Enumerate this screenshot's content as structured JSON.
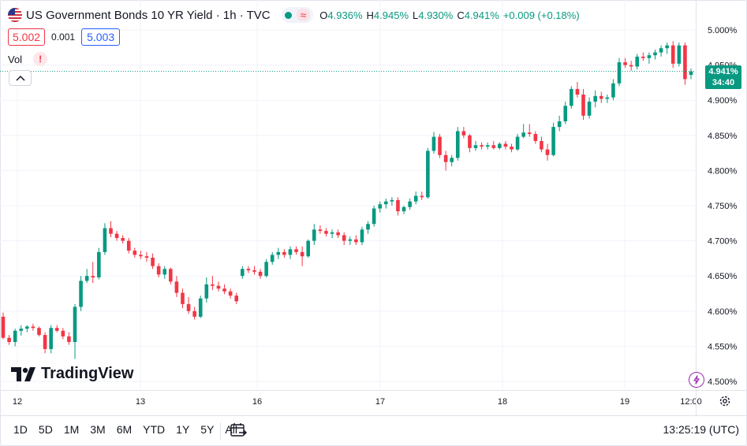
{
  "legend": {
    "title": "US Government Bonds 10 YR Yield · 1h · TVC",
    "approx_symbol": "≈",
    "open_label": "O",
    "open": "4.936%",
    "high_label": "H",
    "high": "4.945%",
    "low_label": "L",
    "low": "4.930%",
    "close_label": "C",
    "close": "4.941%",
    "change": "+0.009 (+0.18%)"
  },
  "quote": {
    "bid": "5.002",
    "spread": "0.001",
    "ask": "5.003"
  },
  "volume": {
    "label": "Vol",
    "warning": "!"
  },
  "logo": {
    "text": "TradingView"
  },
  "last_price": {
    "value": "4.941%",
    "countdown": "34:40"
  },
  "bottom_bar": {
    "ranges": [
      "1D",
      "5D",
      "1M",
      "3M",
      "6M",
      "YTD",
      "1Y",
      "5Y",
      "All"
    ],
    "time": "13:25:19 (UTC)"
  },
  "colors": {
    "up": "#089981",
    "down": "#f23645",
    "grid": "#f0f3fa",
    "text": "#131722"
  },
  "icons": {
    "calendar": "calendar-range-icon",
    "settings": "gear-icon",
    "collapse": "chevron-up-icon"
  },
  "chart_data": {
    "type": "candlestick",
    "y_ticks": [
      "5.000%",
      "4.950%",
      "4.900%",
      "4.850%",
      "4.800%",
      "4.750%",
      "4.700%",
      "4.650%",
      "4.600%",
      "4.550%",
      "4.500%"
    ],
    "x_ticks": [
      "12",
      "13",
      "16",
      "17",
      "18",
      "19",
      "12:00"
    ],
    "ylim": [
      4.49,
      5.01
    ],
    "last_value": 4.941,
    "candles": [
      [
        4.592,
        4.598,
        4.56,
        4.562
      ],
      [
        4.562,
        4.566,
        4.552,
        4.556
      ],
      [
        4.556,
        4.575,
        4.55,
        4.572
      ],
      [
        4.572,
        4.58,
        4.565,
        4.575
      ],
      [
        4.575,
        4.58,
        4.57,
        4.578
      ],
      [
        4.578,
        4.582,
        4.572,
        4.576
      ],
      [
        4.576,
        4.578,
        4.564,
        4.566
      ],
      [
        4.566,
        4.57,
        4.54,
        4.546
      ],
      [
        4.546,
        4.58,
        4.54,
        4.576
      ],
      [
        4.576,
        4.58,
        4.57,
        4.572
      ],
      [
        4.572,
        4.576,
        4.56,
        4.564
      ],
      [
        4.564,
        4.57,
        4.552,
        4.556
      ],
      [
        4.556,
        4.61,
        4.532,
        4.606
      ],
      [
        4.606,
        4.65,
        4.6,
        4.643
      ],
      [
        4.643,
        4.66,
        4.64,
        4.65
      ],
      [
        4.65,
        4.67,
        4.64,
        4.648
      ],
      [
        4.648,
        4.69,
        4.645,
        4.684
      ],
      [
        4.684,
        4.725,
        4.68,
        4.718
      ],
      [
        4.718,
        4.728,
        4.705,
        4.71
      ],
      [
        4.71,
        4.714,
        4.7,
        4.704
      ],
      [
        4.704,
        4.708,
        4.696,
        4.7
      ],
      [
        4.7,
        4.704,
        4.682,
        4.686
      ],
      [
        4.686,
        4.69,
        4.676,
        4.68
      ],
      [
        4.68,
        4.686,
        4.674,
        4.678
      ],
      [
        4.678,
        4.684,
        4.67,
        4.676
      ],
      [
        4.676,
        4.682,
        4.66,
        4.664
      ],
      [
        4.664,
        4.668,
        4.648,
        4.652
      ],
      [
        4.652,
        4.664,
        4.646,
        4.66
      ],
      [
        4.66,
        4.662,
        4.638,
        4.642
      ],
      [
        4.642,
        4.65,
        4.62,
        4.626
      ],
      [
        4.626,
        4.632,
        4.604,
        4.61
      ],
      [
        4.61,
        4.62,
        4.596,
        4.6
      ],
      [
        4.6,
        4.606,
        4.588,
        4.592
      ],
      [
        4.592,
        4.622,
        4.59,
        4.618
      ],
      [
        4.618,
        4.648,
        4.612,
        4.638
      ],
      [
        4.638,
        4.65,
        4.63,
        4.636
      ],
      [
        4.636,
        4.642,
        4.628,
        4.632
      ],
      [
        4.632,
        4.638,
        4.624,
        4.628
      ],
      [
        4.628,
        4.632,
        4.618,
        4.622
      ],
      [
        4.622,
        4.626,
        4.61,
        4.614
      ],
      [
        4.65,
        4.664,
        4.646,
        4.66
      ],
      [
        4.66,
        4.664,
        4.654,
        4.658
      ],
      [
        4.658,
        4.664,
        4.652,
        4.656
      ],
      [
        4.656,
        4.66,
        4.646,
        4.65
      ],
      [
        4.65,
        4.674,
        4.648,
        4.67
      ],
      [
        4.67,
        4.684,
        4.666,
        4.68
      ],
      [
        4.68,
        4.69,
        4.674,
        4.684
      ],
      [
        4.684,
        4.688,
        4.676,
        4.68
      ],
      [
        4.68,
        4.692,
        4.674,
        4.688
      ],
      [
        4.688,
        4.692,
        4.68,
        4.684
      ],
      [
        4.684,
        4.692,
        4.664,
        4.678
      ],
      [
        4.678,
        4.702,
        4.676,
        4.7
      ],
      [
        4.7,
        4.724,
        4.694,
        4.716
      ],
      [
        4.716,
        4.722,
        4.71,
        4.714
      ],
      [
        4.714,
        4.718,
        4.706,
        4.71
      ],
      [
        4.71,
        4.716,
        4.704,
        4.712
      ],
      [
        4.712,
        4.716,
        4.704,
        4.708
      ],
      [
        4.708,
        4.712,
        4.694,
        4.7
      ],
      [
        4.7,
        4.706,
        4.694,
        4.702
      ],
      [
        4.702,
        4.708,
        4.694,
        4.698
      ],
      [
        4.698,
        4.72,
        4.694,
        4.716
      ],
      [
        4.716,
        4.728,
        4.71,
        4.724
      ],
      [
        4.724,
        4.75,
        4.72,
        4.746
      ],
      [
        4.746,
        4.756,
        4.74,
        4.752
      ],
      [
        4.752,
        4.76,
        4.746,
        4.756
      ],
      [
        4.756,
        4.762,
        4.75,
        4.758
      ],
      [
        4.758,
        4.762,
        4.736,
        4.742
      ],
      [
        4.742,
        4.75,
        4.738,
        4.748
      ],
      [
        4.748,
        4.76,
        4.744,
        4.756
      ],
      [
        4.756,
        4.77,
        4.752,
        4.764
      ],
      [
        4.764,
        4.77,
        4.758,
        4.762
      ],
      [
        4.762,
        4.832,
        4.76,
        4.828
      ],
      [
        4.828,
        4.855,
        4.824,
        4.848
      ],
      [
        4.848,
        4.852,
        4.818,
        4.822
      ],
      [
        4.822,
        4.828,
        4.8,
        4.812
      ],
      [
        4.812,
        4.822,
        4.806,
        4.818
      ],
      [
        4.818,
        4.862,
        4.814,
        4.856
      ],
      [
        4.856,
        4.862,
        4.846,
        4.85
      ],
      [
        4.85,
        4.852,
        4.826,
        4.832
      ],
      [
        4.832,
        4.842,
        4.828,
        4.836
      ],
      [
        4.836,
        4.84,
        4.83,
        4.834
      ],
      [
        4.834,
        4.84,
        4.83,
        4.836
      ],
      [
        4.836,
        4.842,
        4.83,
        4.832
      ],
      [
        4.832,
        4.84,
        4.83,
        4.838
      ],
      [
        4.838,
        4.842,
        4.83,
        4.834
      ],
      [
        4.834,
        4.838,
        4.826,
        4.83
      ],
      [
        4.83,
        4.852,
        4.828,
        4.848
      ],
      [
        4.848,
        4.866,
        4.846,
        4.854
      ],
      [
        4.854,
        4.866,
        4.848,
        4.852
      ],
      [
        4.852,
        4.856,
        4.838,
        4.842
      ],
      [
        4.842,
        4.848,
        4.826,
        4.83
      ],
      [
        4.83,
        4.838,
        4.814,
        4.822
      ],
      [
        4.822,
        4.868,
        4.82,
        4.862
      ],
      [
        4.862,
        4.878,
        4.856,
        4.87
      ],
      [
        4.87,
        4.898,
        4.866,
        4.892
      ],
      [
        4.892,
        4.92,
        4.888,
        4.916
      ],
      [
        4.916,
        4.926,
        4.904,
        4.908
      ],
      [
        4.908,
        4.916,
        4.872,
        4.878
      ],
      [
        4.878,
        4.904,
        4.874,
        4.898
      ],
      [
        4.898,
        4.914,
        4.89,
        4.906
      ],
      [
        4.906,
        4.912,
        4.896,
        4.902
      ],
      [
        4.902,
        4.908,
        4.896,
        4.904
      ],
      [
        4.904,
        4.93,
        4.9,
        4.924
      ],
      [
        4.924,
        4.96,
        4.92,
        4.954
      ],
      [
        4.954,
        4.96,
        4.946,
        4.95
      ],
      [
        4.95,
        4.956,
        4.942,
        4.948
      ],
      [
        4.948,
        4.966,
        4.944,
        4.962
      ],
      [
        4.962,
        4.968,
        4.956,
        4.96
      ],
      [
        4.96,
        4.968,
        4.952,
        4.964
      ],
      [
        4.964,
        4.972,
        4.958,
        4.968
      ],
      [
        4.968,
        4.978,
        4.962,
        4.974
      ],
      [
        4.974,
        4.982,
        4.966,
        4.978
      ],
      [
        4.978,
        4.984,
        4.946,
        4.952
      ],
      [
        4.952,
        4.982,
        4.948,
        4.978
      ],
      [
        4.978,
        4.982,
        4.922,
        4.93
      ],
      [
        4.936,
        4.945,
        4.93,
        4.941
      ]
    ]
  }
}
